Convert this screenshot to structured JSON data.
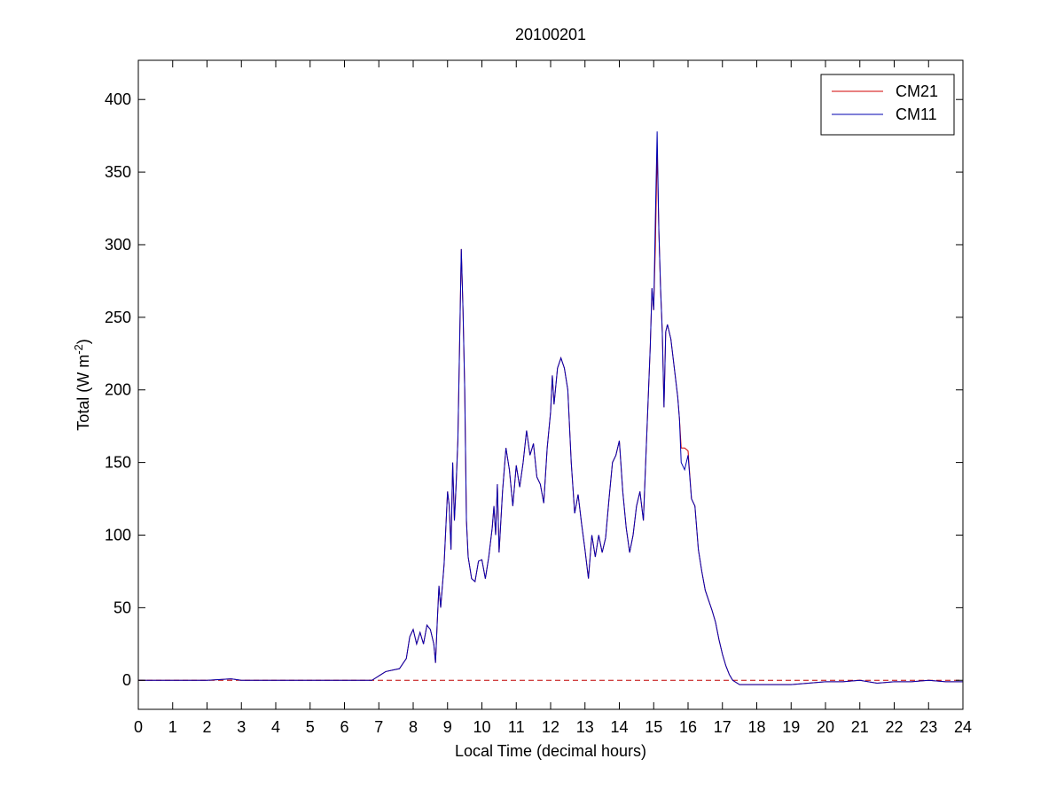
{
  "chart_data": {
    "type": "line",
    "title": "20100201",
    "xlabel": "Local Time (decimal hours)",
    "ylabel": [
      "Total (W m",
      "-2",
      ")"
    ],
    "x": [
      0,
      1,
      2,
      2.7,
      3,
      4,
      5,
      6,
      6.5,
      6.8,
      7.0,
      7.2,
      7.4,
      7.6,
      7.8,
      7.9,
      8.0,
      8.1,
      8.2,
      8.3,
      8.4,
      8.5,
      8.6,
      8.65,
      8.7,
      8.75,
      8.8,
      8.9,
      9.0,
      9.05,
      9.1,
      9.15,
      9.2,
      9.25,
      9.3,
      9.35,
      9.4,
      9.45,
      9.5,
      9.55,
      9.6,
      9.7,
      9.8,
      9.9,
      10.0,
      10.1,
      10.2,
      10.3,
      10.35,
      10.4,
      10.45,
      10.5,
      10.6,
      10.7,
      10.8,
      10.9,
      11.0,
      11.1,
      11.2,
      11.3,
      11.4,
      11.5,
      11.6,
      11.7,
      11.8,
      11.9,
      12.0,
      12.05,
      12.1,
      12.2,
      12.3,
      12.4,
      12.5,
      12.6,
      12.7,
      12.8,
      12.9,
      13.0,
      13.1,
      13.2,
      13.3,
      13.4,
      13.5,
      13.6,
      13.7,
      13.8,
      13.9,
      14.0,
      14.1,
      14.2,
      14.3,
      14.4,
      14.5,
      14.6,
      14.7,
      14.8,
      14.9,
      14.95,
      15.0,
      15.05,
      15.1,
      15.15,
      15.2,
      15.25,
      15.3,
      15.35,
      15.4,
      15.5,
      15.6,
      15.7,
      15.75,
      15.8,
      15.9,
      16.0,
      16.1,
      16.2,
      16.3,
      16.4,
      16.5,
      16.6,
      16.7,
      16.8,
      16.9,
      17.0,
      17.1,
      17.2,
      17.3,
      17.5,
      17.8,
      18.5,
      19,
      19.5,
      20,
      20.5,
      21,
      21.5,
      22,
      22.5,
      23,
      23.5,
      24
    ],
    "series": [
      {
        "name": "CM21",
        "color": "#d00000",
        "values": [
          0,
          0,
          0,
          1,
          0,
          0,
          0,
          0,
          0,
          0,
          3,
          6,
          7,
          8,
          15,
          30,
          35,
          25,
          33,
          25,
          38,
          35,
          25,
          12,
          40,
          65,
          50,
          80,
          130,
          120,
          90,
          150,
          110,
          135,
          165,
          230,
          297,
          255,
          200,
          110,
          85,
          70,
          68,
          82,
          83,
          70,
          85,
          105,
          120,
          100,
          135,
          88,
          130,
          160,
          145,
          120,
          148,
          133,
          150,
          172,
          155,
          163,
          140,
          135,
          122,
          160,
          185,
          210,
          190,
          215,
          222,
          215,
          200,
          150,
          115,
          128,
          108,
          90,
          70,
          100,
          85,
          100,
          88,
          98,
          125,
          150,
          155,
          165,
          130,
          105,
          88,
          100,
          120,
          130,
          110,
          170,
          230,
          270,
          255,
          300,
          365,
          310,
          270,
          240,
          188,
          240,
          245,
          235,
          215,
          195,
          180,
          160,
          160,
          158,
          125,
          120,
          90,
          75,
          62,
          55,
          48,
          40,
          28,
          18,
          10,
          4,
          0,
          -3,
          -3,
          -3,
          -3,
          -2,
          -1,
          -1,
          0,
          -2,
          -1,
          -1,
          0,
          -1,
          -1
        ]
      },
      {
        "name": "CM11",
        "color": "#0000b0",
        "values": [
          0,
          0,
          0,
          1,
          0,
          0,
          0,
          0,
          0,
          0,
          3,
          6,
          7,
          8,
          15,
          30,
          35,
          25,
          33,
          25,
          38,
          35,
          25,
          12,
          40,
          65,
          50,
          80,
          130,
          120,
          90,
          150,
          110,
          135,
          165,
          230,
          297,
          255,
          200,
          110,
          85,
          70,
          68,
          82,
          83,
          70,
          85,
          105,
          120,
          100,
          135,
          88,
          130,
          160,
          145,
          120,
          148,
          133,
          150,
          172,
          155,
          163,
          140,
          135,
          122,
          160,
          185,
          210,
          190,
          215,
          222,
          215,
          200,
          150,
          115,
          128,
          108,
          90,
          70,
          100,
          85,
          100,
          88,
          98,
          125,
          150,
          155,
          165,
          130,
          105,
          88,
          100,
          120,
          130,
          110,
          170,
          230,
          270,
          255,
          320,
          378,
          310,
          270,
          240,
          188,
          240,
          245,
          235,
          215,
          195,
          180,
          150,
          145,
          155,
          125,
          120,
          90,
          75,
          62,
          55,
          48,
          40,
          28,
          18,
          10,
          4,
          0,
          -3,
          -3,
          -3,
          -3,
          -2,
          -1,
          -1,
          0,
          -2,
          -1,
          -1,
          0,
          -1,
          -1
        ]
      }
    ],
    "reference_line": {
      "value": 0,
      "color": "#c00000",
      "style": "dashed"
    },
    "xlim": [
      0,
      24
    ],
    "xticks": [
      0,
      1,
      2,
      3,
      4,
      5,
      6,
      7,
      8,
      9,
      10,
      11,
      12,
      13,
      14,
      15,
      16,
      17,
      18,
      19,
      20,
      21,
      22,
      23,
      24
    ],
    "ylim": [
      -20,
      427
    ],
    "yticks": [
      0,
      50,
      100,
      150,
      200,
      250,
      300,
      350,
      400
    ],
    "legend": "northeast"
  }
}
